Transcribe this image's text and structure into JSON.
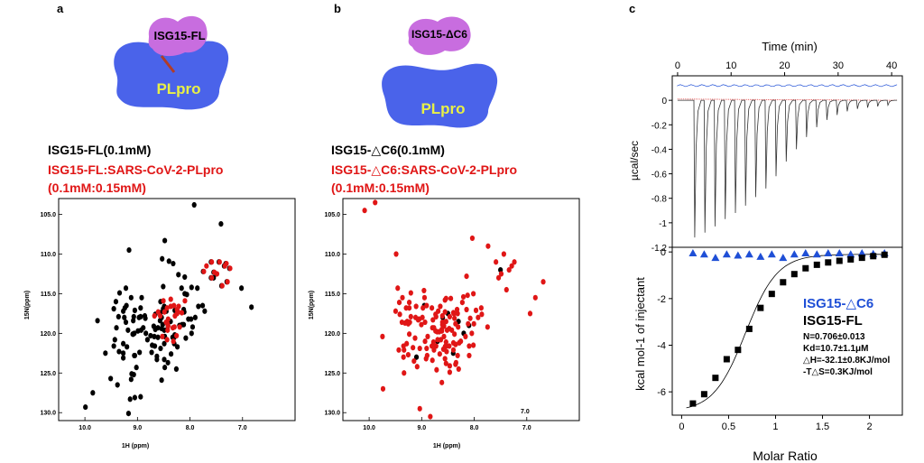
{
  "panel_a": {
    "letter": "a",
    "isg_label": "ISG15-FL",
    "plpro_label": "PLpro",
    "legend_black": "ISG15-FL(0.1mM)",
    "legend_red_1": "ISG15-FL:SARS-CoV-2-PLpro",
    "legend_red_2": "(0.1mM:0.15mM)",
    "ylabel": "15N(ppm)",
    "xlabel": "1H (ppm)",
    "yticks": [
      "105.0",
      "110.0",
      "115.0",
      "120.0",
      "125.0",
      "130.0"
    ],
    "xticks": [
      "10.0",
      "9.0",
      "8.0",
      "7.0"
    ]
  },
  "panel_b": {
    "letter": "b",
    "isg_label": "ISG15-ΔC6",
    "plpro_label": "PLpro",
    "legend_black": "ISG15-△C6(0.1mM)",
    "legend_red_1": "ISG15-△C6:SARS-CoV-2-PLpro",
    "legend_red_2": "(0.1mM:0.15mM)",
    "ylabel": "15N(ppm)",
    "xlabel": "1H (ppm)",
    "yticks": [
      "105.0",
      "110.0",
      "115.0",
      "120.0",
      "125.0",
      "130.0"
    ],
    "xticks": [
      "10.0",
      "9.0",
      "8.0",
      "7.0"
    ]
  },
  "panel_c": {
    "letter": "c",
    "top_xlabel": "Time (min)",
    "top_xticks": [
      "0",
      "10",
      "20",
      "30",
      "40"
    ],
    "top_ylabel": "µcal/sec",
    "top_yticks": [
      "0",
      "-0.2",
      "-0.4",
      "-0.6",
      "-0.8",
      "-1",
      "-1.2"
    ],
    "bottom_ylabel": "kcal mol-1 of injectant",
    "bottom_yticks": [
      "0",
      "-2",
      "-4",
      "-6"
    ],
    "bottom_xlabel": "Molar Ratio",
    "bottom_xticks": [
      "0",
      "0.5",
      "1",
      "1.5",
      "2"
    ],
    "legend_blue": "ISG15-△C6",
    "legend_black": "ISG15-FL",
    "params": [
      "N=0.706±0.013",
      "Kd=10.7±1.1μM",
      "△H=-32.1±0.8KJ/mol",
      "-T△S=0.3KJ/mol"
    ],
    "colors": {
      "blue": "#1f4fd6",
      "black": "#000000",
      "red": "#e01616"
    }
  },
  "chart_data": [
    {
      "type": "scatter",
      "series": [
        {
          "name": "ISG15-FL",
          "color": "#000000",
          "x": [
            9.99,
            9.61,
            9.17,
            8.94,
            8.4,
            8.53,
            7.92,
            7.41,
            7.02,
            6.83,
            7.55,
            7.72,
            8.48,
            9.16,
            9.41,
            9.4,
            9.27,
            9.07,
            9.85,
            8.24,
            8.45,
            8.12,
            9.27,
            9.22,
            8.49,
            8.48,
            8.32,
            9.05,
            9.2,
            8.61,
            8.1,
            8.94,
            9.12,
            9.05,
            8.92,
            8.54,
            9.45,
            8.51,
            7.84,
            8.54,
            9.09,
            8.43,
            8.51,
            8.67,
            9.27,
            8.49,
            9.21,
            9.34,
            9.02,
            8.72,
            8.52,
            9.51,
            8.93,
            8.54,
            8.3,
            8.66,
            8.84,
            8.33,
            8.03,
            8.89,
            8.94,
            7.97,
            8.42,
            7.98,
            9.27,
            8.61,
            8.66,
            8.56,
            8.11,
            8.08,
            8.48,
            9.18,
            9.36,
            8.69,
            8.49,
            9.05,
            9.08,
            9.06,
            8.56,
            7.86,
            9.07,
            8.2,
            8.42,
            8.75,
            9.22,
            8.29,
            7.9,
            8.68,
            8.16,
            8.56,
            9.12,
            8.37,
            9.25,
            8.99,
            9.11,
            8.36,
            9.43,
            8.96,
            9.76,
            8.97,
            7.76,
            8.73,
            8.49,
            9.06,
            8.63,
            8.49,
            8.3,
            8.15,
            8.06,
            7.95,
            8.86,
            9.08,
            9.38,
            8.22,
            8.29,
            9.35,
            8.57,
            8.81,
            8.85,
            9.45,
            9.24,
            8.12,
            9.14,
            8.26,
            7.97,
            8.63,
            7.35,
            7.45,
            7.6,
            7.5,
            7.25,
            7.32,
            7.55,
            7.6,
            7.3,
            7.4,
            8.1,
            7.75
          ],
          "y": [
            129.3,
            122.5,
            130.1,
            128.0,
            110.9,
            110.6,
            103.8,
            106.2,
            114.3,
            116.7,
            113.0,
            117.2,
            108.3,
            109.5,
            116.0,
            119.3,
            122.5,
            125.2,
            127.5,
            121.7,
            117.2,
            117.0,
            121.3,
            114.3,
            119.6,
            124.3,
            111.2,
            122.8,
            121.7,
            120.5,
            112.9,
            116.8,
            125.8,
            128.1,
            115.5,
            125.9,
            121.6,
            114.1,
            116.6,
            118.0,
            120.1,
            119.5,
            116.9,
            121.6,
            123.1,
            123.3,
            116.5,
            114.9,
            124.3,
            121.5,
            118.9,
            125.7,
            119.6,
            119.4,
            121.3,
            117.6,
            120.0,
            120.5,
            118.2,
            119.3,
            117.9,
            120.0,
            123.7,
            118.2,
            117.2,
            119.3,
            119.5,
            116.0,
            117.3,
            120.6,
            120.4,
            119.6,
            117.9,
            119.1,
            121.3,
            117.1,
            120.1,
            122.8,
            121.9,
            114.3,
            117.9,
            119.0,
            119.0,
            120.3,
            118.6,
            117.1,
            118.0,
            120.4,
            114.3,
            117.4,
            115.5,
            118.5,
            118.0,
            119.7,
            125.1,
            122.6,
            120.8,
            122.4,
            118.4,
            118.0,
            116.5,
            122.4,
            116.6,
            120.0,
            122.9,
            117.0,
            120.5,
            118.9,
            115.1,
            119.2,
            117.8,
            118.4,
            126.5,
            112.6,
            120.2,
            122.3,
            118.4,
            120.8,
            118.1,
            116.9,
            116.8,
            118.9,
            128.3,
            124.5,
            114.2,
            123.3,
            111.5,
            111.0,
            113.0,
            112.5,
            111.8,
            111.2,
            112.3,
            111.0,
            113.5,
            114.0,
            115.0,
            112.2
          ]
        },
        {
          "name": "ISG15-FL:SARS-CoV-2-PLpro",
          "color": "#e01616",
          "x": [
            8.45,
            8.3,
            8.11,
            8.23,
            8.54,
            8.45,
            8.27,
            8.62,
            8.69,
            8.43,
            8.5,
            8.38,
            8.58,
            8.17,
            8.47,
            8.26,
            8.33,
            8.52,
            8.21,
            8.38,
            8.31,
            8.44,
            8.44,
            8.43,
            8.32,
            8.34,
            8.26,
            8.24,
            7.35,
            7.45,
            7.6,
            7.5,
            7.25,
            7.32,
            7.55,
            7.6,
            7.3,
            7.4,
            7.75,
            7.7
          ],
          "y": [
            120.8,
            117.8,
            115.9,
            116.6,
            120.4,
            116.8,
            120.3,
            117.3,
            117.8,
            118.2,
            117.3,
            116.6,
            117.8,
            117.4,
            118.6,
            117.0,
            121.0,
            115.9,
            119.2,
            115.7,
            119.2,
            118.8,
            119.6,
            119.1,
            116.5,
            119.3,
            117.5,
            117.3,
            111.5,
            111.0,
            113.0,
            112.5,
            111.8,
            111.2,
            112.3,
            111.0,
            113.5,
            114.0,
            112.2,
            111.5
          ]
        }
      ],
      "xlabel": "1H (ppm)",
      "ylabel": "15N(ppm)",
      "xlim": [
        10.5,
        6.0
      ],
      "ylim": [
        103,
        131
      ]
    },
    {
      "type": "scatter",
      "series": [
        {
          "name": "ISG15-△C6(0.1mM)",
          "color": "#000000",
          "x": [
            8.5,
            8.3,
            8.1,
            8.7,
            8.95,
            9.1,
            8.2,
            8.4,
            8.6,
            7.5
          ],
          "y": [
            117.5,
            118.5,
            119.0,
            121.0,
            116.5,
            123.0,
            120.0,
            122.5,
            118.0,
            112.0
          ]
        },
        {
          "name": "ISG15-△C6:SARS-CoV-2-PLpro",
          "color": "#e01616",
          "x": [
            9.25,
            9.05,
            9.25,
            8.96,
            8.58,
            9.12,
            8.57,
            7.94,
            8.73,
            8.57,
            8.06,
            7.76,
            8.91,
            8.81,
            8.99,
            9.24,
            8.63,
            8.75,
            9.22,
            8.44,
            8.16,
            9.1,
            8.13,
            8.32,
            8.62,
            9.76,
            8.37,
            8.37,
            8.62,
            8.33,
            8.41,
            9.36,
            8.79,
            8.41,
            8.71,
            9.25,
            8.11,
            9.14,
            8.3,
            8.53,
            9.51,
            8.48,
            8.59,
            9.16,
            8.41,
            8.95,
            8.03,
            9.43,
            8.78,
            8.27,
            8.22,
            9.45,
            8.36,
            8.82,
            8.4,
            9.35,
            9.02,
            8.24,
            9.44,
            8.57,
            8.37,
            7.87,
            9.06,
            9.38,
            8.74,
            8.9,
            8.55,
            7.98,
            8.63,
            9.31,
            9.39,
            8.92,
            8.34,
            8.14,
            8.56,
            8.92,
            7.88,
            8.57,
            8.41,
            8.93,
            8.49,
            8.33,
            9.3,
            8.67,
            9.29,
            8.7,
            9.07,
            8.55,
            8.39,
            8.75,
            8.59,
            8.74,
            9.27,
            8.82,
            9.18,
            8.63,
            8.49,
            8.55,
            9.22,
            8.11,
            8.95,
            8.18,
            8.68,
            8.66,
            8.48,
            8.97,
            8.81,
            8.39,
            8.48,
            8.78,
            9.13,
            8.54,
            8.16,
            8.65,
            9.36,
            8.72,
            9.27,
            8.02,
            8.55,
            8.46,
            8.31,
            8.55,
            8.09,
            8.8,
            9.33,
            8.62,
            9.08,
            9.0,
            9.47,
            8.03,
            10.1,
            9.75,
            9.35,
            9.05,
            8.6,
            8.05,
            7.75,
            7.45,
            7.3,
            7.6,
            7.5,
            7.35,
            7.25,
            7.55,
            7.4,
            6.85,
            6.7,
            6.95,
            9.5,
            9.9,
            8.85
          ],
          "y": [
            116.8,
            121.9,
            120.1,
            115.5,
            118.6,
            116.6,
            123.2,
            118.0,
            124.6,
            121.7,
            120.0,
            119.2,
            122.8,
            119.3,
            116.8,
            118.6,
            119.5,
            117.6,
            114.9,
            119.6,
            112.8,
            124.2,
            118.8,
            119.2,
            117.8,
            120.4,
            121.4,
            123.9,
            118.6,
            117.5,
            117.4,
            121.6,
            121.1,
            122.1,
            120.8,
            116.1,
            122.8,
            120.6,
            121.2,
            119.6,
            117.2,
            124.9,
            120.4,
            123.5,
            117.4,
            121.0,
            121.5,
            117.6,
            119.3,
            121.0,
            115.4,
            122.1,
            123.7,
            116.8,
            117.5,
            122.1,
            118.9,
            116.1,
            116.1,
            115.8,
            118.8,
            117.6,
            118.2,
            115.5,
            117.9,
            120.4,
            115.6,
            117.1,
            126.2,
            116.8,
            118.6,
            121.9,
            117.0,
            115.2,
            121.6,
            116.5,
            116.8,
            117.3,
            121.2,
            123.2,
            121.6,
            122.8,
            121.3,
            122.6,
            118.5,
            117.2,
            118.2,
            118.5,
            118.1,
            119.7,
            119.1,
            121.6,
            118.8,
            121.6,
            121.8,
            119.7,
            119.4,
            121.6,
            117.9,
            121.6,
            118.6,
            120.4,
            119.8,
            116.6,
            124.1,
            114.6,
            123.4,
            120.1,
            117.9,
            122.1,
            118.0,
            122.3,
            117.0,
            120.8,
            123.0,
            119.8,
            122.7,
            118.8,
            121.1,
            115.6,
            124.5,
            123.8,
            118.1,
            118.3,
            118.7,
            118.9,
            118.3,
            118.0,
            114.3,
            115.0,
            104.5,
            127.0,
            125.0,
            129.5,
            122.0,
            108.0,
            109.0,
            110.0,
            111.5,
            111.0,
            112.5,
            112.0,
            111.0,
            113.0,
            114.5,
            115.5,
            113.5,
            117.5,
            110.0,
            103.5,
            130.5
          ]
        }
      ],
      "annotation": "7.0",
      "xlabel": "1H (ppm)",
      "ylabel": "15N(ppm)",
      "xlim": [
        10.5,
        6.0
      ],
      "ylim": [
        103,
        131
      ]
    },
    {
      "type": "line",
      "title": "",
      "xlabel": "Time (min)",
      "ylabel": "µcal/sec",
      "xlim": [
        0,
        42
      ],
      "ylim": [
        -1.2,
        0.2
      ],
      "injection_times": [
        3.2,
        5.1,
        7.0,
        8.9,
        10.8,
        12.7,
        14.6,
        16.5,
        18.4,
        20.3,
        22.2,
        24.1,
        26.0,
        27.9,
        29.8,
        31.7,
        33.6,
        35.5,
        37.4,
        39.3
      ],
      "peak_minima": [
        -1.12,
        -1.08,
        -1.03,
        -0.97,
        -0.92,
        -0.86,
        -0.79,
        -0.72,
        -0.62,
        -0.5,
        -0.4,
        -0.3,
        -0.22,
        -0.16,
        -0.12,
        -0.09,
        -0.07,
        -0.06,
        -0.05,
        -0.04
      ]
    },
    {
      "type": "scatter",
      "xlabel": "Molar Ratio",
      "ylabel": "kcal mol-1 of injectant",
      "xlim": [
        -0.1,
        2.35
      ],
      "ylim": [
        -7,
        0.2
      ],
      "series": [
        {
          "name": "ISG15-△C6",
          "color": "#1f4fd6",
          "marker": "triangle",
          "x": [
            0.12,
            0.24,
            0.36,
            0.48,
            0.6,
            0.72,
            0.84,
            0.96,
            1.08,
            1.2,
            1.32,
            1.44,
            1.56,
            1.68,
            1.8,
            1.92,
            2.04,
            2.16
          ],
          "y": [
            -0.05,
            -0.1,
            -0.25,
            -0.1,
            -0.15,
            -0.1,
            -0.2,
            -0.1,
            -0.25,
            -0.1,
            -0.05,
            -0.1,
            -0.05,
            -0.05,
            -0.1,
            -0.05,
            -0.08,
            -0.05
          ]
        },
        {
          "name": "ISG15-FL",
          "color": "#000000",
          "marker": "square",
          "x": [
            0.12,
            0.24,
            0.36,
            0.48,
            0.6,
            0.72,
            0.84,
            0.96,
            1.08,
            1.2,
            1.32,
            1.44,
            1.56,
            1.68,
            1.8,
            1.92,
            2.04,
            2.16
          ],
          "y": [
            -6.5,
            -6.1,
            -5.4,
            -4.6,
            -4.2,
            -3.3,
            -2.4,
            -1.8,
            -1.3,
            -0.95,
            -0.7,
            -0.55,
            -0.45,
            -0.38,
            -0.32,
            -0.25,
            -0.18,
            -0.12
          ]
        }
      ]
    }
  ]
}
